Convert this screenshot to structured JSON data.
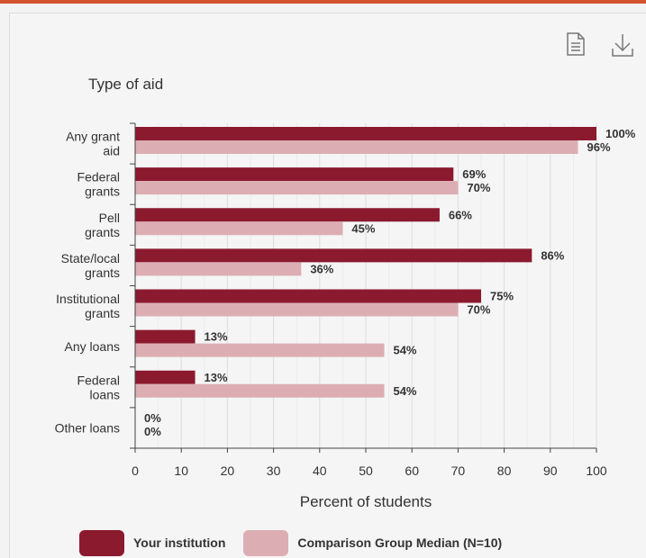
{
  "chart_data": {
    "type": "bar",
    "orientation": "horizontal",
    "title": "Type of aid",
    "xlabel": "Percent of students",
    "ylabel": "",
    "xlim": [
      0,
      100
    ],
    "x_ticks": [
      "0",
      "10",
      "20",
      "30",
      "40",
      "50",
      "60",
      "70",
      "80",
      "90",
      "100"
    ],
    "grid": true,
    "legend_position": "bottom",
    "categories": [
      [
        "Any grant",
        "aid"
      ],
      [
        "Federal",
        "grants"
      ],
      [
        "Pell",
        "grants"
      ],
      [
        "State/local",
        "grants"
      ],
      [
        "Institutional",
        "grants"
      ],
      [
        "Any loans"
      ],
      [
        "Federal",
        "loans"
      ],
      [
        "Other loans"
      ]
    ],
    "series": [
      {
        "name": "Your institution",
        "color": "#8b1a2f",
        "values": [
          100,
          69,
          66,
          86,
          75,
          13,
          13,
          0
        ],
        "labels": [
          "100%",
          "69%",
          "66%",
          "86%",
          "75%",
          "13%",
          "13%",
          "0%"
        ]
      },
      {
        "name": "Comparison Group Median (N=10)",
        "color": "#dcaeb4",
        "values": [
          96,
          70,
          45,
          36,
          70,
          54,
          54,
          0
        ],
        "labels": [
          "96%",
          "70%",
          "45%",
          "36%",
          "70%",
          "54%",
          "54%",
          "0%"
        ]
      }
    ]
  },
  "icons": {
    "data_table": "document-icon",
    "download": "download-icon"
  }
}
